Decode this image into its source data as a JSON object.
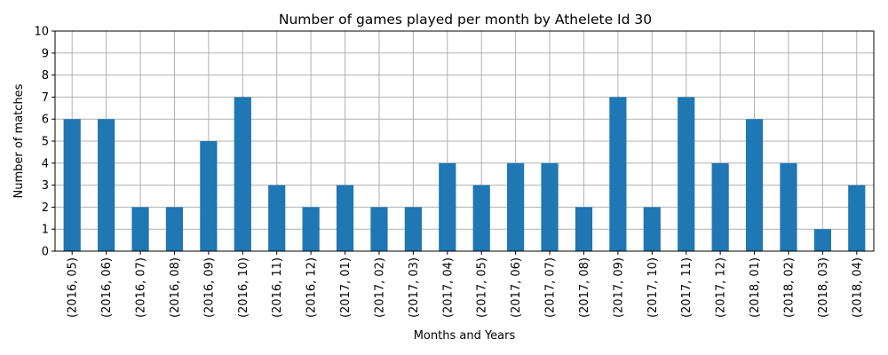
{
  "chart_data": {
    "type": "bar",
    "title": "Number of games played per month by Athelete Id 30",
    "xlabel": "Months and Years",
    "ylabel": "Number of matches",
    "ylim": [
      0,
      10
    ],
    "yticks": [
      0,
      1,
      2,
      3,
      4,
      5,
      6,
      7,
      8,
      9,
      10
    ],
    "grid": true,
    "bar_color": "#1f77b4",
    "categories": [
      "(2016, 05)",
      "(2016, 06)",
      "(2016, 07)",
      "(2016, 08)",
      "(2016, 09)",
      "(2016, 10)",
      "(2016, 11)",
      "(2016, 12)",
      "(2017, 01)",
      "(2017, 02)",
      "(2017, 03)",
      "(2017, 04)",
      "(2017, 05)",
      "(2017, 06)",
      "(2017, 07)",
      "(2017, 08)",
      "(2017, 09)",
      "(2017, 10)",
      "(2017, 11)",
      "(2017, 12)",
      "(2018, 01)",
      "(2018, 02)",
      "(2018, 03)",
      "(2018, 04)"
    ],
    "values": [
      6,
      6,
      2,
      2,
      5,
      7,
      3,
      2,
      3,
      2,
      2,
      4,
      3,
      4,
      4,
      2,
      7,
      2,
      7,
      4,
      6,
      4,
      1,
      3
    ]
  }
}
